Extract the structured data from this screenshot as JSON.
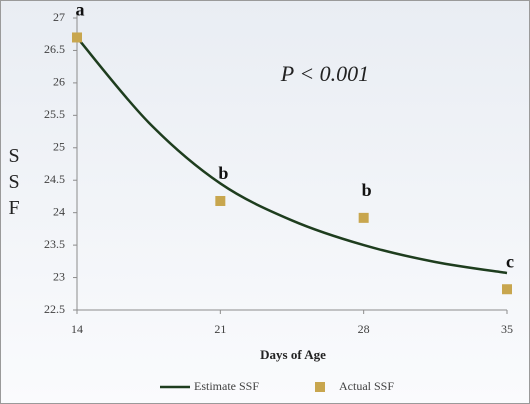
{
  "chart_data": {
    "type": "line",
    "annotation": "P < 0.001",
    "xlabel": "Days of Age",
    "ylabel": "SSF",
    "xlim": [
      14,
      35
    ],
    "xticks": [
      14,
      21,
      28,
      35
    ],
    "ylim": [
      22.5,
      27
    ],
    "yticks": [
      22.5,
      23,
      23.5,
      24,
      24.5,
      25,
      25.5,
      26,
      26.5,
      27
    ],
    "series": [
      {
        "name": "Estimate SSF",
        "color": "#1e3d1e",
        "kind": "line",
        "x": [
          14,
          17.5,
          21,
          24.5,
          28,
          31.5,
          35
        ],
        "values": [
          26.7,
          25.39,
          24.45,
          23.88,
          23.5,
          23.24,
          23.07
        ]
      },
      {
        "name": "Actual SSF",
        "color": "#c8a64e",
        "kind": "marker",
        "x": [
          14,
          21,
          28,
          35
        ],
        "values": [
          26.7,
          24.18,
          23.92,
          22.82
        ],
        "labels": [
          "a",
          "b",
          "b",
          "c"
        ]
      }
    ]
  }
}
